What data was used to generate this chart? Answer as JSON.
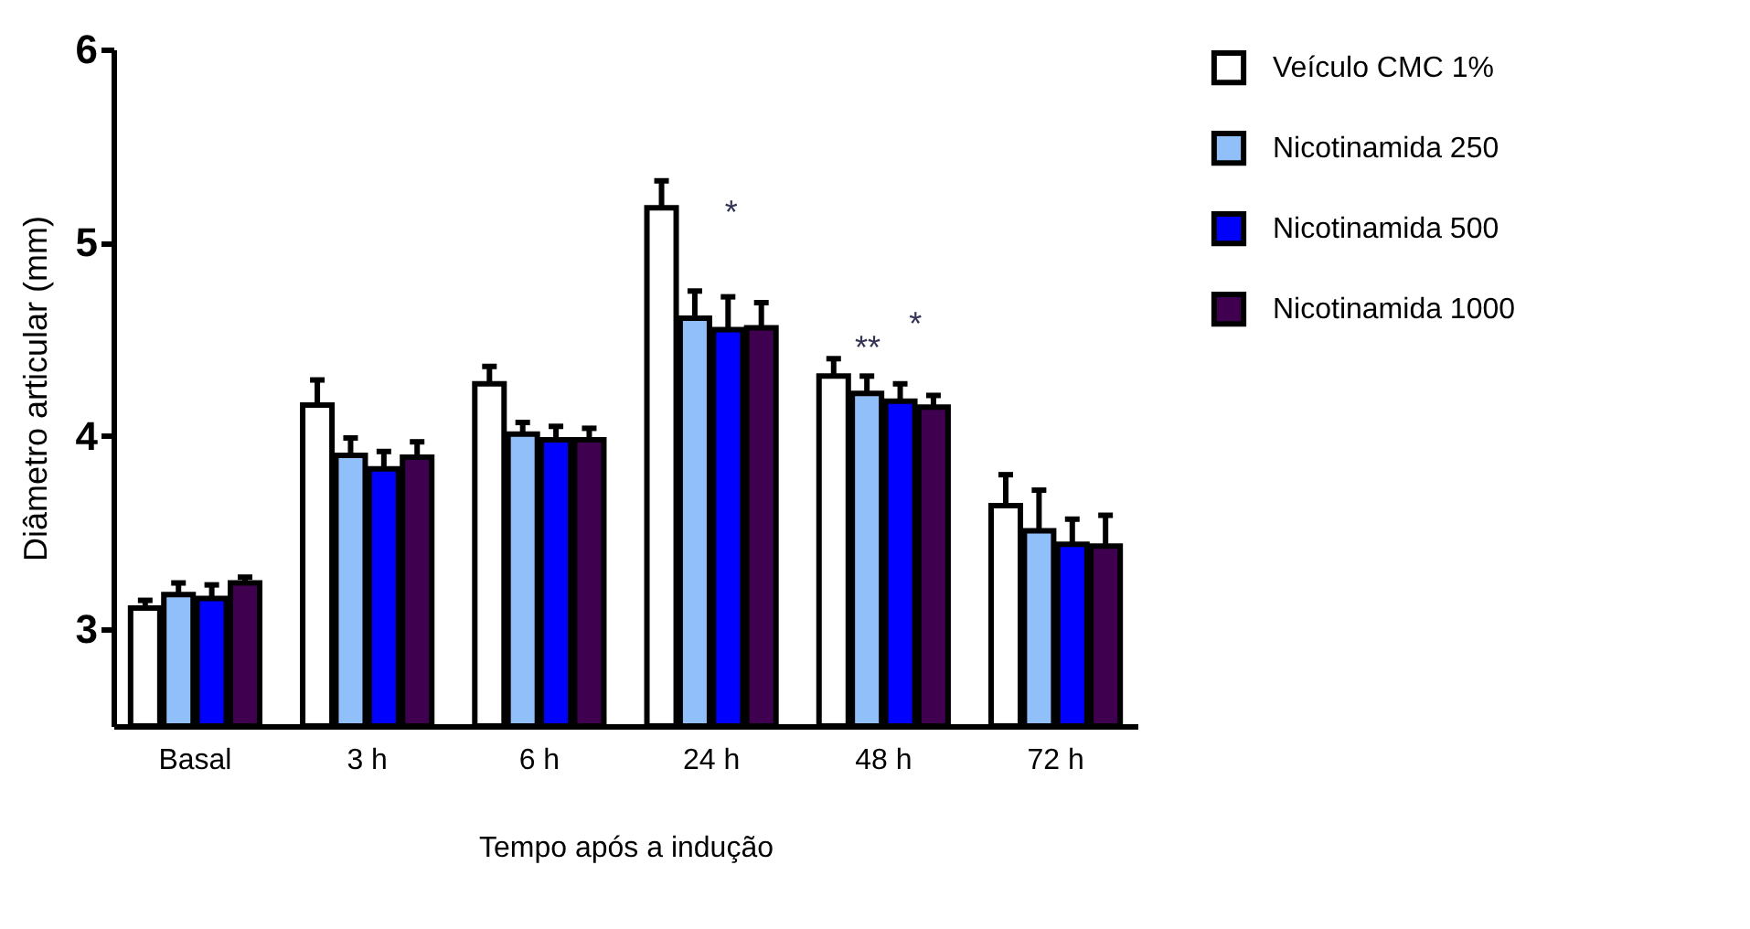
{
  "chart_data": {
    "type": "bar",
    "ylabel": "Diâmetro articular (mm)",
    "xlabel": "Tempo após a indução",
    "categories": [
      "Basal",
      "3 h",
      "6 h",
      "24 h",
      "48 h",
      "72 h"
    ],
    "series": [
      {
        "name": "Veículo CMC 1%",
        "color": "#ffffff",
        "values": [
          3.11,
          4.16,
          4.27,
          5.18,
          4.31,
          3.64
        ],
        "errors": [
          [
            3.11,
            3.15
          ],
          [
            4.16,
            4.29
          ],
          [
            4.27,
            4.36
          ],
          [
            5.18,
            5.32
          ],
          [
            4.31,
            4.4
          ],
          [
            3.64,
            3.8
          ]
        ]
      },
      {
        "name": "Nicotinamida 250",
        "color": "#90bff9",
        "values": [
          3.18,
          3.9,
          4.01,
          4.61,
          4.22,
          3.51
        ],
        "errors": [
          [
            3.18,
            3.24
          ],
          [
            3.9,
            3.99
          ],
          [
            4.01,
            4.07
          ],
          [
            4.61,
            4.75
          ],
          [
            4.22,
            4.31
          ],
          [
            3.51,
            3.72
          ]
        ]
      },
      {
        "name": "Nicotinamida 500",
        "color": "#0000ff",
        "values": [
          3.16,
          3.83,
          3.98,
          4.55,
          4.18,
          3.44
        ],
        "errors": [
          [
            3.16,
            3.23
          ],
          [
            3.83,
            3.92
          ],
          [
            3.98,
            4.05
          ],
          [
            4.55,
            4.72
          ],
          [
            4.18,
            4.27
          ],
          [
            3.44,
            3.57
          ]
        ]
      },
      {
        "name": "Nicotinamida 1000",
        "color": "#400050",
        "values": [
          3.24,
          3.89,
          3.98,
          4.56,
          4.15,
          3.43
        ],
        "errors": [
          [
            3.24,
            3.27
          ],
          [
            3.89,
            3.97
          ],
          [
            3.98,
            4.04
          ],
          [
            4.56,
            4.69
          ],
          [
            4.15,
            4.21
          ],
          [
            3.43,
            3.59
          ]
        ]
      }
    ],
    "ylim": [
      2.5,
      6
    ],
    "yticks": [
      3,
      4,
      5,
      6
    ],
    "legend": "right",
    "annotations": [
      "*",
      "**",
      "*"
    ]
  }
}
